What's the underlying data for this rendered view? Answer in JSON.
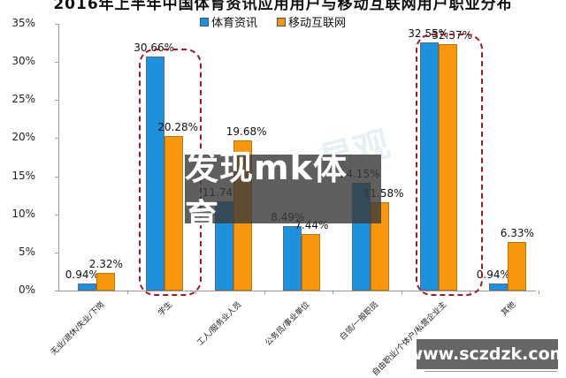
{
  "chart_data": {
    "type": "bar",
    "title": "2016年上半年中国体育资讯应用用户与移动互联网用户职业分布",
    "xlabel": "",
    "ylabel": "",
    "ylim": [
      0,
      35
    ],
    "yticks": [
      "0%",
      "5%",
      "10%",
      "15%",
      "20%",
      "25%",
      "30%",
      "35%"
    ],
    "grid": false,
    "legend_position": "top",
    "categories": [
      "无业/退休/失业/下岗",
      "学生",
      "工人/服务业人员",
      "公务员/事业单位",
      "白领/一般职员",
      "自由职业/个体户/私营企业主",
      "其他"
    ],
    "series": [
      {
        "name": "体育资讯",
        "color": "#1e90dc",
        "values": [
          0.94,
          30.66,
          11.74,
          8.49,
          14.15,
          32.55,
          0.94
        ]
      },
      {
        "name": "移动互联网",
        "color": "#f7960f",
        "values": [
          2.32,
          20.28,
          19.68,
          7.44,
          11.58,
          32.37,
          6.33
        ]
      }
    ],
    "value_labels": {
      "体育资讯": [
        "0.94%",
        "30.66%",
        "11.74%",
        "8.49%",
        "14.15%",
        "32.55%",
        "0.94%"
      ],
      "移动互联网": [
        "2.32%",
        "20.28%",
        "19.68%",
        "7.44%",
        "11.58%",
        "32.37%",
        "6.33%"
      ]
    },
    "annotations": [
      "Dashed rounded box highlighting 学生",
      "Dashed rounded box highlighting 自由职业/个体户/私营企业主"
    ]
  },
  "overlay": {
    "watermark_text": "发现mk体育",
    "url_text": "www.sczdzk.com",
    "faint_watermark": "易观"
  }
}
